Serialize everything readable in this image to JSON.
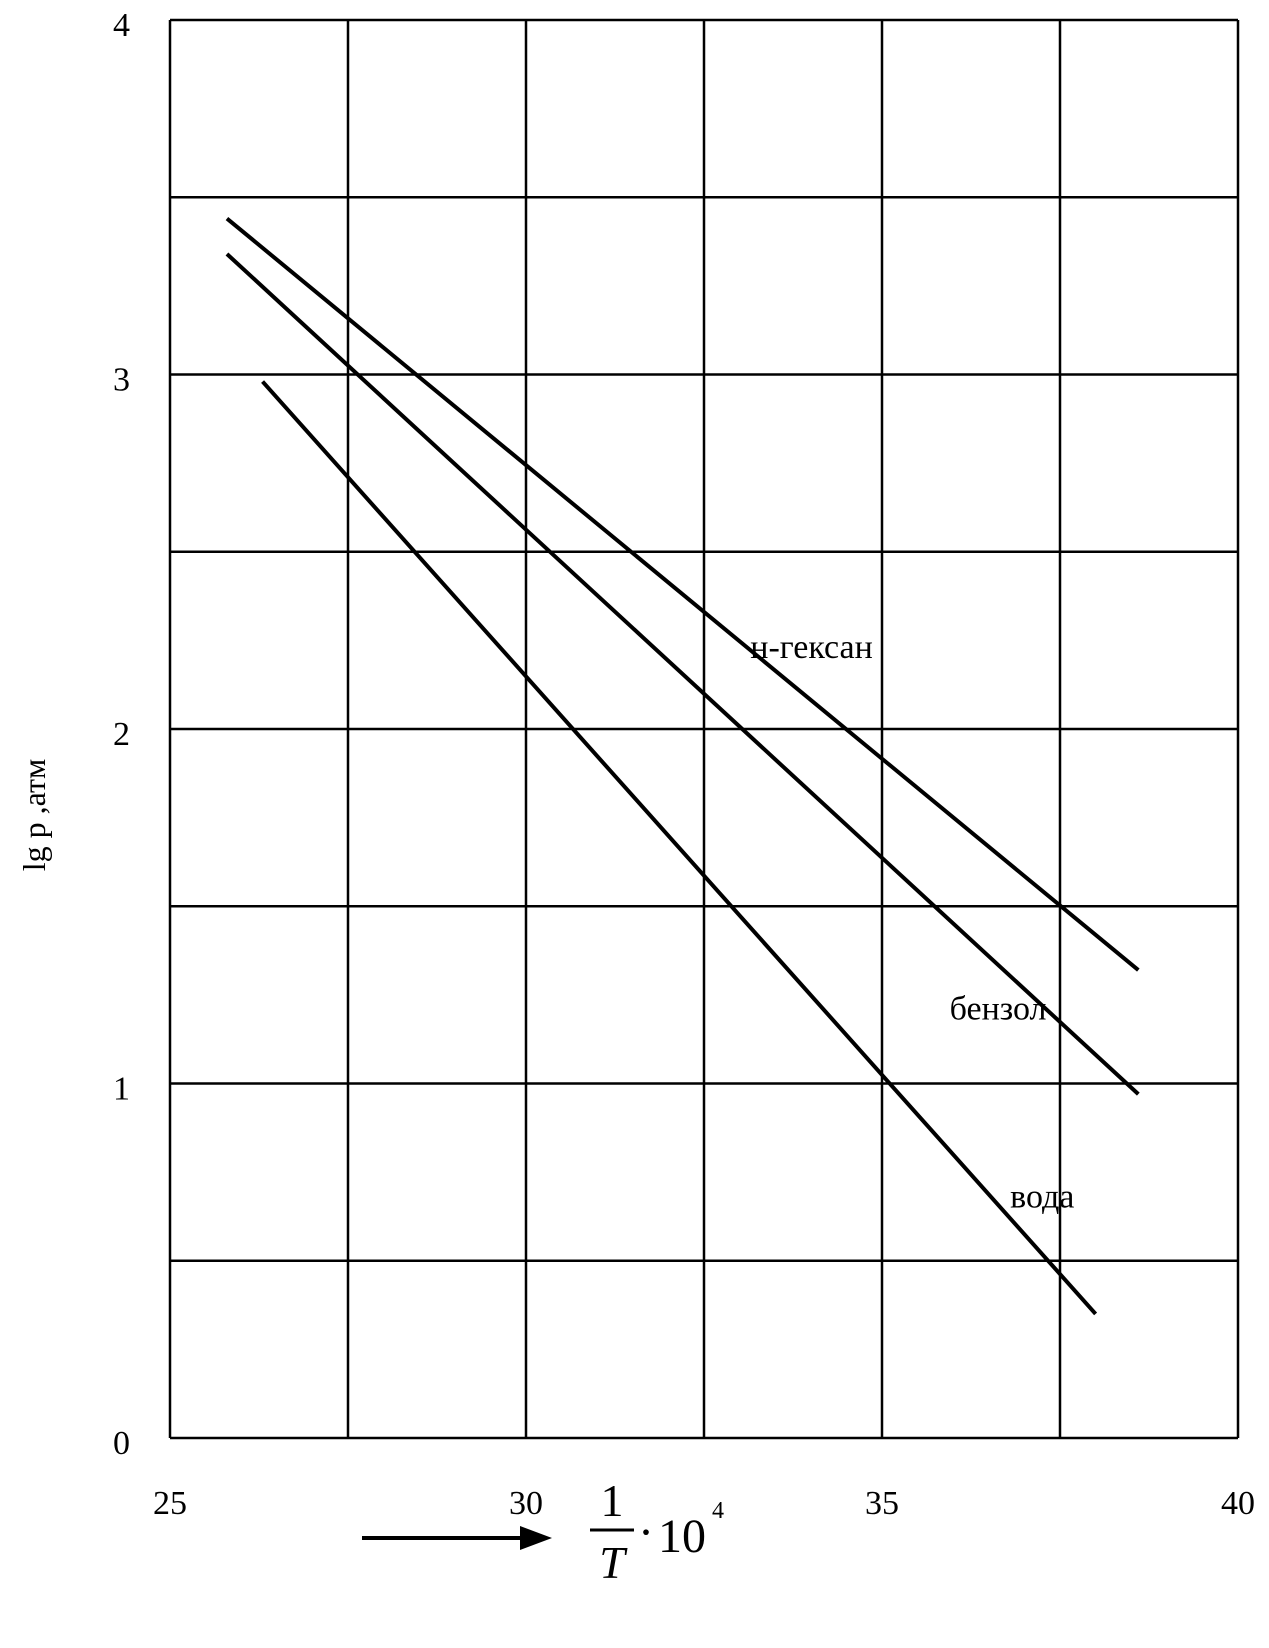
{
  "chart_data": {
    "type": "line",
    "title": "",
    "ylabel": "lg p ,атм",
    "xlabel": {
      "numerator": "1",
      "denominator": "T",
      "dot": "·",
      "base": "10",
      "exponent": "4"
    },
    "xlim": [
      25,
      40
    ],
    "ylim": [
      0,
      4
    ],
    "x_ticks": [
      25,
      30,
      35,
      40
    ],
    "y_ticks": [
      0,
      1,
      2,
      3,
      4
    ],
    "x_tick_labels": [
      "25",
      "30",
      "35",
      "40"
    ],
    "y_tick_labels": [
      "0",
      "1",
      "2",
      "3",
      "4"
    ],
    "x_grid": [
      25,
      27.5,
      30,
      32.5,
      35,
      37.5,
      40
    ],
    "y_grid": [
      0,
      0.5,
      1,
      1.5,
      2,
      2.5,
      3,
      3.5,
      4
    ],
    "grid": true,
    "legend": "none (labels placed next to lines)",
    "colors": {
      "line": "#000000",
      "grid": "#000000",
      "background": "#ffffff"
    },
    "series": [
      {
        "name": "н-гексан",
        "x": [
          25.8,
          38.6
        ],
        "y": [
          3.44,
          1.32
        ]
      },
      {
        "name": "бензол",
        "x": [
          25.8,
          38.6
        ],
        "y": [
          3.34,
          0.97
        ]
      },
      {
        "name": "вода",
        "x": [
          26.3,
          38.0
        ],
        "y": [
          2.98,
          0.35
        ]
      }
    ]
  }
}
